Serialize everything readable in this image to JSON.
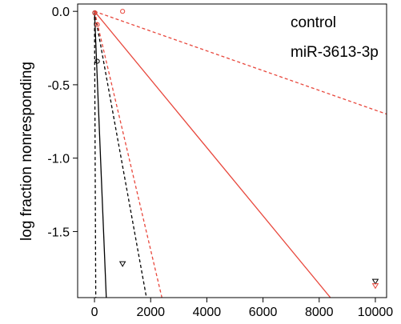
{
  "chart_data": {
    "type": "scatter",
    "title": "",
    "xlabel": "",
    "ylabel": "log fraction nonresponding",
    "xlim": [
      -600,
      10400
    ],
    "ylim": [
      -1.95,
      0.05
    ],
    "x_ticks": [
      0,
      2000,
      4000,
      6000,
      8000,
      10000
    ],
    "y_ticks": [
      0.0,
      -0.5,
      -1.0,
      -1.5
    ],
    "x_tick_labels": [
      "0",
      "2000",
      "4000",
      "6000",
      "8000",
      "10000"
    ],
    "y_tick_labels": [
      "0.0",
      "-0.5",
      "-1.0",
      "-1.5"
    ],
    "grid": false,
    "legend": {
      "placement": "top-right",
      "entries": [
        "control",
        "miR-3613-3p"
      ]
    },
    "series": [
      {
        "name": "control",
        "color": "#000000",
        "points": [
          {
            "x": 10,
            "y": -0.01,
            "marker": "circle"
          },
          {
            "x": 100,
            "y": -0.34,
            "marker": "circle"
          },
          {
            "x": 1000,
            "y": -1.72,
            "marker": "triangle-down"
          },
          {
            "x": 10000,
            "y": -1.84,
            "marker": "triangle-down"
          }
        ],
        "lines": [
          {
            "style": "solid",
            "x0": 0,
            "y0": 0.0,
            "x1": 420,
            "y1": -1.95
          },
          {
            "style": "dashed",
            "x0": 0,
            "y0": 0.0,
            "x1": 45,
            "y1": -1.95
          },
          {
            "style": "dashed",
            "x0": 0,
            "y0": 0.0,
            "x1": 1850,
            "y1": -1.95
          }
        ]
      },
      {
        "name": "miR-3613-3p",
        "color": "#e8473c",
        "points": [
          {
            "x": 10,
            "y": -0.01,
            "marker": "circle"
          },
          {
            "x": 100,
            "y": -0.09,
            "marker": "circle"
          },
          {
            "x": 1000,
            "y": 0.0,
            "marker": "circle"
          },
          {
            "x": 10000,
            "y": -1.87,
            "marker": "triangle-down"
          }
        ],
        "lines": [
          {
            "style": "solid",
            "x0": 0,
            "y0": 0.0,
            "x1": 8400,
            "y1": -1.95
          },
          {
            "style": "dashed",
            "x0": 0,
            "y0": 0.0,
            "x1": 2400,
            "y1": -1.95
          },
          {
            "style": "dashed",
            "x0": 0,
            "y0": 0.0,
            "x1": 10400,
            "y1": -0.7
          }
        ]
      }
    ]
  }
}
